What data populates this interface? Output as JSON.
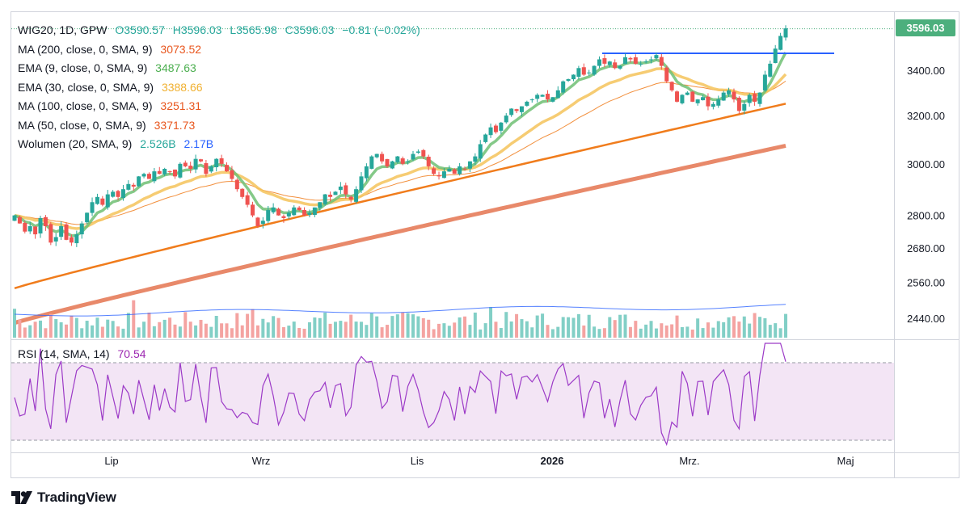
{
  "header": {
    "symbol_line": "WIG20, 1D, GPW",
    "open": "O3590.57",
    "high": "H3596.03",
    "low": "L3565.98",
    "close": "C3596.03",
    "change": "−0.81 (−0.02%)"
  },
  "indicators": [
    {
      "label": "MA (200, close, 0, SMA, 9)",
      "value": "3073.52",
      "color": "#e8896a"
    },
    {
      "label": "EMA (9, close, 0, SMA, 9)",
      "value": "3487.63",
      "color": "#6fbf73"
    },
    {
      "label": "EMA (30, close, 0, SMA, 9)",
      "value": "3388.66",
      "color": "#f5c35a"
    },
    {
      "label": "MA (100, close, 0, SMA, 9)",
      "value": "3251.31",
      "color": "#f07c1c"
    },
    {
      "label": "MA (50, close, 0, SMA, 9)",
      "value": "3371.73",
      "color": "#f07c1c"
    }
  ],
  "volume_legend": {
    "label": "Wolumen (20, SMA, 9)",
    "value1": "2.526B",
    "value2": "2.17B",
    "color1": "#26a69a",
    "color2": "#2962ff"
  },
  "rsi_legend": {
    "label": "RSI (14, SMA, 14)",
    "value": "70.54",
    "color": "#9c27b0"
  },
  "last_price_badge": {
    "value": "3596.03",
    "color": "#4caf7d"
  },
  "brand": {
    "name": "TradingView",
    "icon": "tradingview-logo-icon"
  },
  "colors": {
    "up": "#26a69a",
    "down": "#ef5350",
    "resistance": "#2962ff",
    "rsi": "#9c3ac7"
  },
  "chart_data": {
    "type": "candlestick",
    "price_axis": {
      "ticks": [
        3596.03,
        3400,
        3200,
        3000,
        2800,
        2680,
        2560,
        2440
      ],
      "tick_labels": [
        "3596.03",
        "3400.00",
        "3200.00",
        "3000.00",
        "2800.00",
        "2680.00",
        "2560.00",
        "2440.00"
      ],
      "scale": "log"
    },
    "time_axis": {
      "labels": [
        "Lip",
        "Wrz",
        "Lis",
        "2026",
        "Mrz.",
        "Maj"
      ]
    },
    "resistance_level": 3478,
    "price_close_series": [
      2800,
      2770,
      2740,
      2760,
      2730,
      2790,
      2760,
      2700,
      2720,
      2760,
      2710,
      2700,
      2730,
      2770,
      2810,
      2850,
      2870,
      2840,
      2880,
      2890,
      2870,
      2900,
      2920,
      2910,
      2950,
      2960,
      2940,
      2970,
      2960,
      2980,
      2970,
      2950,
      3000,
      2990,
      2980,
      3020,
      3010,
      2960,
      2990,
      3020,
      3000,
      2970,
      2940,
      2900,
      2870,
      2840,
      2800,
      2760,
      2780,
      2820,
      2830,
      2800,
      2790,
      2810,
      2830,
      2820,
      2800,
      2810,
      2830,
      2850,
      2880,
      2870,
      2890,
      2910,
      2880,
      2860,
      2900,
      2950,
      2990,
      3030,
      3040,
      3010,
      2990,
      3010,
      3030,
      3000,
      3010,
      3040,
      3050,
      3030,
      2990,
      2960,
      2950,
      2970,
      2980,
      2960,
      2990,
      2980,
      3010,
      3030,
      3080,
      3120,
      3150,
      3130,
      3170,
      3200,
      3230,
      3220,
      3240,
      3260,
      3270,
      3290,
      3290,
      3270,
      3280,
      3310,
      3350,
      3360,
      3380,
      3410,
      3380,
      3390,
      3420,
      3450,
      3430,
      3440,
      3410,
      3420,
      3460,
      3450,
      3430,
      3430,
      3440,
      3450,
      3470,
      3420,
      3350,
      3310,
      3260,
      3290,
      3300,
      3260,
      3270,
      3280,
      3240,
      3250,
      3270,
      3300,
      3310,
      3270,
      3220,
      3250,
      3290,
      3260,
      3300,
      3380,
      3430,
      3500,
      3560,
      3596
    ],
    "ma200": {
      "start": 2425,
      "end": 3073.52
    },
    "ma100": {
      "start": 2540,
      "end": 3251.31
    },
    "ema30_end": 3388.66,
    "ema9_end": 3487.63,
    "rsi": {
      "current": 70.54,
      "overbought": 70,
      "oversold": 30
    },
    "volume": {
      "current": "2.526B",
      "average": "2.17B"
    }
  }
}
